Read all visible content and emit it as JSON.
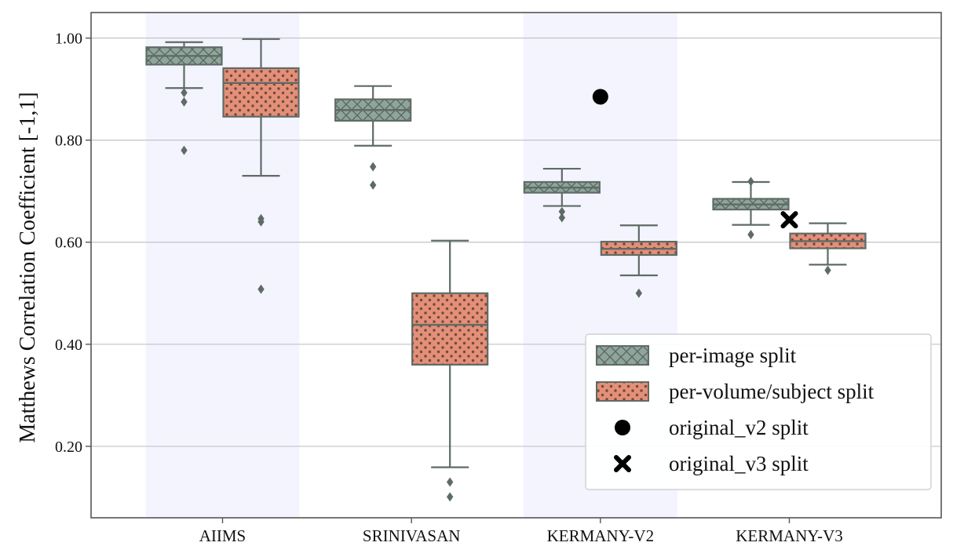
{
  "chart_data": {
    "type": "box",
    "ylabel": "Matthews Correlation Coefficient [-1,1]",
    "xlabel": "",
    "ylim": [
      0.06,
      1.05
    ],
    "yticks": [
      0.2,
      0.4,
      0.6,
      0.8,
      1.0
    ],
    "ytick_labels": [
      "0.20",
      "0.40",
      "0.60",
      "0.80",
      "1.00"
    ],
    "grid": true,
    "shaded_categories": [
      "AIIMS",
      "KERMANY-V2"
    ],
    "categories": [
      "AIIMS",
      "SRINIVASAN",
      "KERMANY-V2",
      "KERMANY-V3"
    ],
    "series": [
      {
        "name": "per-image split",
        "color": "#8fa59b",
        "pattern": "crosshatch",
        "boxes": [
          {
            "whislo": 0.902,
            "q1": 0.948,
            "med": 0.965,
            "q3": 0.982,
            "whishi": 0.992,
            "fliers": [
              0.893,
              0.875,
              0.78
            ]
          },
          {
            "whislo": 0.789,
            "q1": 0.838,
            "med": 0.859,
            "q3": 0.88,
            "whishi": 0.906,
            "fliers": [
              0.748,
              0.712
            ]
          },
          {
            "whislo": 0.671,
            "q1": 0.697,
            "med": 0.707,
            "q3": 0.718,
            "whishi": 0.744,
            "fliers": [
              0.66,
              0.648
            ]
          },
          {
            "whislo": 0.634,
            "q1": 0.664,
            "med": 0.674,
            "q3": 0.685,
            "whishi": 0.718,
            "fliers": [
              0.719,
              0.615
            ]
          }
        ]
      },
      {
        "name": "per-volume/subject split",
        "color": "#e48f78",
        "pattern": "dots",
        "boxes": [
          {
            "whislo": 0.73,
            "q1": 0.846,
            "med": 0.912,
            "q3": 0.941,
            "whishi": 0.998,
            "fliers": [
              0.646,
              0.64,
              0.508
            ]
          },
          {
            "whislo": 0.159,
            "q1": 0.36,
            "med": 0.438,
            "q3": 0.5,
            "whishi": 0.603,
            "fliers": [
              0.13,
              0.101
            ]
          },
          {
            "whislo": 0.535,
            "q1": 0.575,
            "med": 0.587,
            "q3": 0.601,
            "whishi": 0.633,
            "fliers": [
              0.5
            ]
          },
          {
            "whislo": 0.556,
            "q1": 0.588,
            "med": 0.602,
            "q3": 0.617,
            "whishi": 0.637,
            "fliers": [
              0.545
            ]
          }
        ]
      }
    ],
    "markers": [
      {
        "name": "original_v2 split",
        "shape": "circle",
        "category": "KERMANY-V2",
        "y": 0.885
      },
      {
        "name": "original_v3 split",
        "shape": "x",
        "category": "KERMANY-V3",
        "y": 0.644
      }
    ],
    "legend_position": "lower-right"
  }
}
